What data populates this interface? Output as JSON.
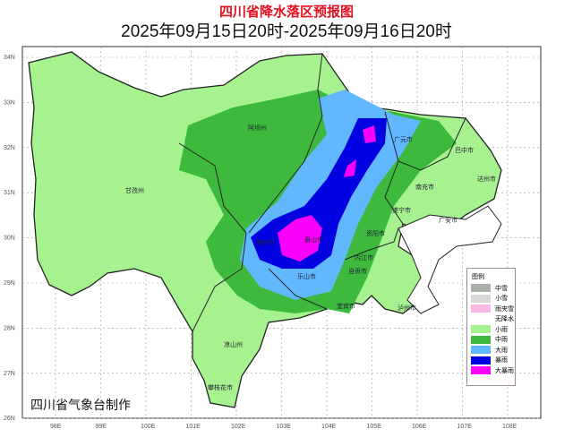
{
  "title": "四川省降水落区预报图",
  "subtitle": "2025年09月15日20时-2025年09月16日20时",
  "credit": "四川省气象台制作",
  "axes": {
    "lat": [
      "34N",
      "33N",
      "32N",
      "31N",
      "30N",
      "29N",
      "28N",
      "27N",
      "26N"
    ],
    "lon": [
      "98E",
      "99E",
      "100E",
      "101E",
      "102E",
      "103E",
      "104E",
      "105E",
      "106E",
      "107E",
      "108E"
    ]
  },
  "legend": {
    "title": "图例",
    "items": [
      {
        "label": "中雪",
        "color": "#a9b0a9"
      },
      {
        "label": "小雪",
        "color": "#d8d8d8"
      },
      {
        "label": "雨夹雪",
        "color": "#f9b8e6"
      },
      {
        "label": "无降水",
        "color": "#ffffff"
      },
      {
        "label": "小雨",
        "color": "#a6f28f"
      },
      {
        "label": "中雨",
        "color": "#3dba3d"
      },
      {
        "label": "大雨",
        "color": "#61b8ff"
      },
      {
        "label": "暴雨",
        "color": "#0000e1"
      },
      {
        "label": "大暴雨",
        "color": "#fa00fa"
      }
    ]
  },
  "regions": [
    "阿坝州",
    "甘孜州",
    "广元市",
    "巴中市",
    "达州市",
    "南充市",
    "遂宁市",
    "广安市",
    "资阳市",
    "雅安市",
    "乐山市",
    "内江市",
    "自贡市",
    "宜宾市",
    "泸州市",
    "凉山州",
    "攀枝花市",
    "眉山市"
  ]
}
